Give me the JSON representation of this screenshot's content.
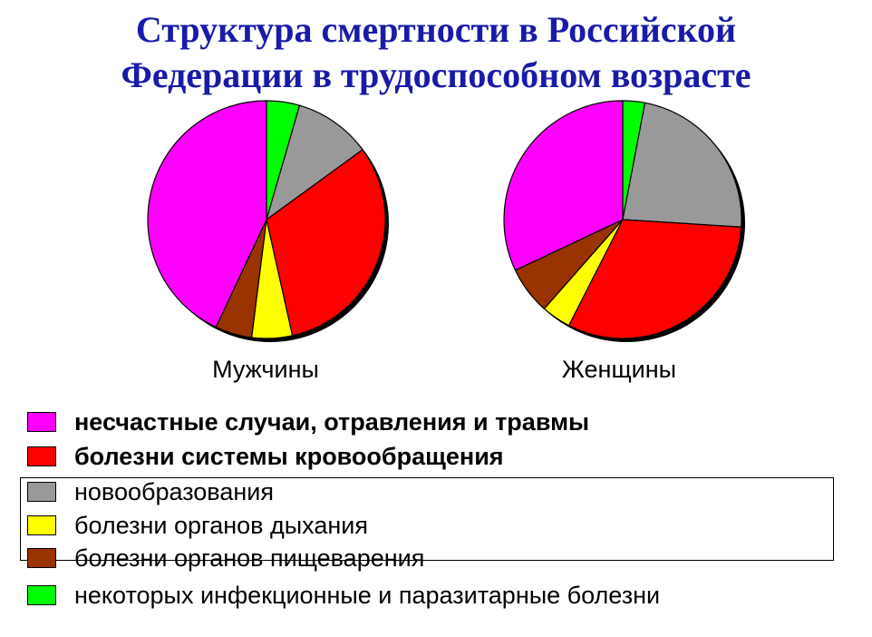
{
  "title_lines": [
    "Структура смертности в Российской",
    "Федерации в трудоспособном возрасте"
  ],
  "chart_data": [
    {
      "type": "pie",
      "title": "Мужчины",
      "categories": [
        "некоторых инфекционные и паразитарные болезни",
        "новообразования",
        "болезни системы кровообращения",
        "болезни органов дыхания",
        "болезни органов пищеварения",
        "несчастные случаи, отравления и травмы"
      ],
      "values": [
        4.5,
        10.5,
        31.5,
        5.5,
        5,
        43
      ],
      "colors": [
        "#00ff00",
        "#999999",
        "#ff0000",
        "#ffff00",
        "#993300",
        "#ff00ff"
      ]
    },
    {
      "type": "pie",
      "title": "Женщины",
      "categories": [
        "некоторых инфекционные и паразитарные болезни",
        "новообразования",
        "болезни системы кровообращения",
        "болезни органов дыхания",
        "болезни органов пищеварения",
        "несчастные случаи, отравления и травмы"
      ],
      "values": [
        3,
        23,
        31.5,
        4,
        6.5,
        32
      ],
      "colors": [
        "#00ff00",
        "#999999",
        "#ff0000",
        "#ffff00",
        "#993300",
        "#ff00ff"
      ]
    }
  ],
  "legend": [
    {
      "label": "несчастные случаи, отравления и травмы",
      "color": "#ff00ff",
      "bold": true
    },
    {
      "label": "болезни системы кровообращения",
      "color": "#ff0000",
      "bold": true
    },
    {
      "label": "новообразования",
      "color": "#999999",
      "bold": false
    },
    {
      "label": "болезни органов дыхания",
      "color": "#ffff00",
      "bold": false
    },
    {
      "label": "болезни органов пищеварения",
      "color": "#993300",
      "bold": false
    },
    {
      "label": "некоторых инфекционные и паразитарные болезни",
      "color": "#00ff00",
      "bold": false
    }
  ]
}
